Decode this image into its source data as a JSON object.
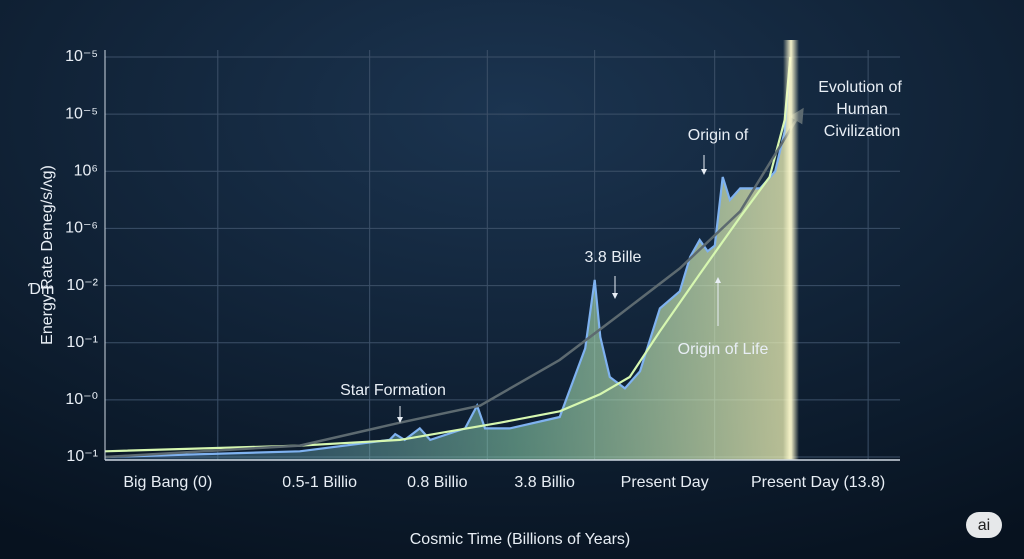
{
  "chart_data": {
    "type": "line",
    "y_label_prefix": "Ɗm",
    "y_label": "Energy Rate Deneg/s/ʌg)",
    "x_label": "Cosmic Time (Billions of Years)",
    "xlim": [
      0,
      100
    ],
    "ylim": [
      0,
      7
    ],
    "xticks": [
      {
        "value": 7.9,
        "label": "Big Bang (0)"
      },
      {
        "value": 27,
        "label": "0.5-1 Billio"
      },
      {
        "value": 41.8,
        "label": "0.8 Billio"
      },
      {
        "value": 55.3,
        "label": "3.8 Billio"
      },
      {
        "value": 70.4,
        "label": "Present Day"
      },
      {
        "value": 89.7,
        "label": "Present Day (13.8)"
      }
    ],
    "yticks": [
      {
        "value": 0,
        "label": "10⁻¹"
      },
      {
        "value": 1,
        "label": "10⁻⁰"
      },
      {
        "value": 2,
        "label": "10⁻¹"
      },
      {
        "value": 3,
        "label": "10⁻²"
      },
      {
        "value": 4,
        "label": "10⁻⁶"
      },
      {
        "value": 5,
        "label": "10⁶"
      },
      {
        "value": 6,
        "label": "10⁻⁵"
      },
      {
        "value": 7,
        "label": "10⁻⁵"
      }
    ],
    "grid": true,
    "series": [
      {
        "color": "#7fb2f0",
        "fill": true,
        "x": [
          0,
          24.5,
          35.8,
          36.5,
          37.7,
          39.6,
          40.9,
          45.3,
          46.8,
          47.8,
          50.9,
          57.2,
          60.4,
          61.6,
          62.3,
          63.5,
          65.4,
          67.3,
          69.8,
          72.3,
          73.6,
          74.8,
          75.8,
          76.7,
          77.7,
          78.6,
          79.9,
          82.4,
          84.3,
          85.5,
          86.2
        ],
        "values": [
          0,
          0.1,
          0.3,
          0.4,
          0.3,
          0.5,
          0.3,
          0.5,
          0.9,
          0.5,
          0.5,
          0.7,
          1.9,
          3.1,
          2.1,
          1.4,
          1.2,
          1.5,
          2.6,
          2.9,
          3.5,
          3.8,
          3.6,
          3.7,
          4.9,
          4.5,
          4.7,
          4.7,
          5.0,
          5.7,
          7.0
        ]
      },
      {
        "color": "#d6f7b0",
        "fill": false,
        "x": [
          0,
          24.5,
          37.1,
          49.7,
          57.2,
          62.3,
          66.0,
          69.8,
          74.8,
          79.9,
          83.6,
          85.5,
          86.2
        ],
        "values": [
          0.1,
          0.2,
          0.3,
          0.6,
          0.8,
          1.1,
          1.4,
          2.2,
          3.2,
          4.2,
          4.9,
          5.9,
          7.0
        ]
      },
      {
        "color": "#5d6a70",
        "fill": false,
        "x": [
          0,
          24.5,
          37.1,
          47.2,
          57.2,
          64.8,
          72.3,
          79.9,
          87.4
        ],
        "values": [
          0,
          0.2,
          0.6,
          0.9,
          1.7,
          2.5,
          3.3,
          4.3,
          6.0
        ]
      }
    ],
    "annotations": [
      "Star Formation",
      "3.8 Bille",
      "Origin of",
      "Origin of Life",
      "Evolution of",
      "Human",
      "Civilization"
    ],
    "badge": "ai"
  }
}
